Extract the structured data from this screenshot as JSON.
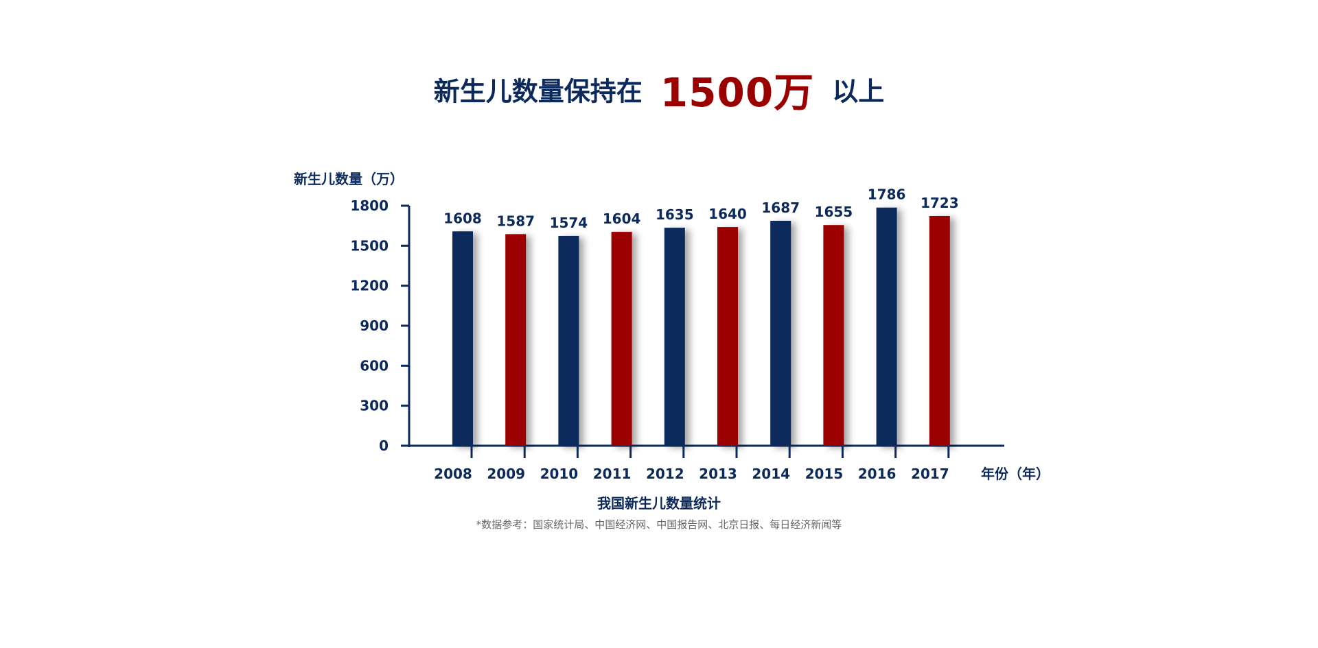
{
  "headline": {
    "prefix": "新生儿数量保持在",
    "highlight": "1500万",
    "suffix": "以上"
  },
  "colors": {
    "navy": "#0b2a5b",
    "red": "#9a0000"
  },
  "chart_data": {
    "type": "bar",
    "ylabel": "新生儿数量（万）",
    "xlabel": "年份（年）",
    "categories": [
      "2008",
      "2009",
      "2010",
      "2011",
      "2012",
      "2013",
      "2014",
      "2015",
      "2016",
      "2017"
    ],
    "values": [
      1608,
      1587,
      1574,
      1604,
      1635,
      1640,
      1687,
      1655,
      1786,
      1723
    ],
    "bar_colors": [
      "#0b2a5b",
      "#9a0000",
      "#0b2a5b",
      "#9a0000",
      "#0b2a5b",
      "#9a0000",
      "#0b2a5b",
      "#9a0000",
      "#0b2a5b",
      "#9a0000"
    ],
    "yticks": [
      0,
      300,
      600,
      900,
      1200,
      1500,
      1800
    ],
    "ylim": [
      0,
      1800
    ],
    "grid": false,
    "legend": "none"
  },
  "caption": "我国新生儿数量统计",
  "source_note": "*数据参考：国家统计局、中国经济网、中国报告网、北京日报、每日经济新闻等"
}
